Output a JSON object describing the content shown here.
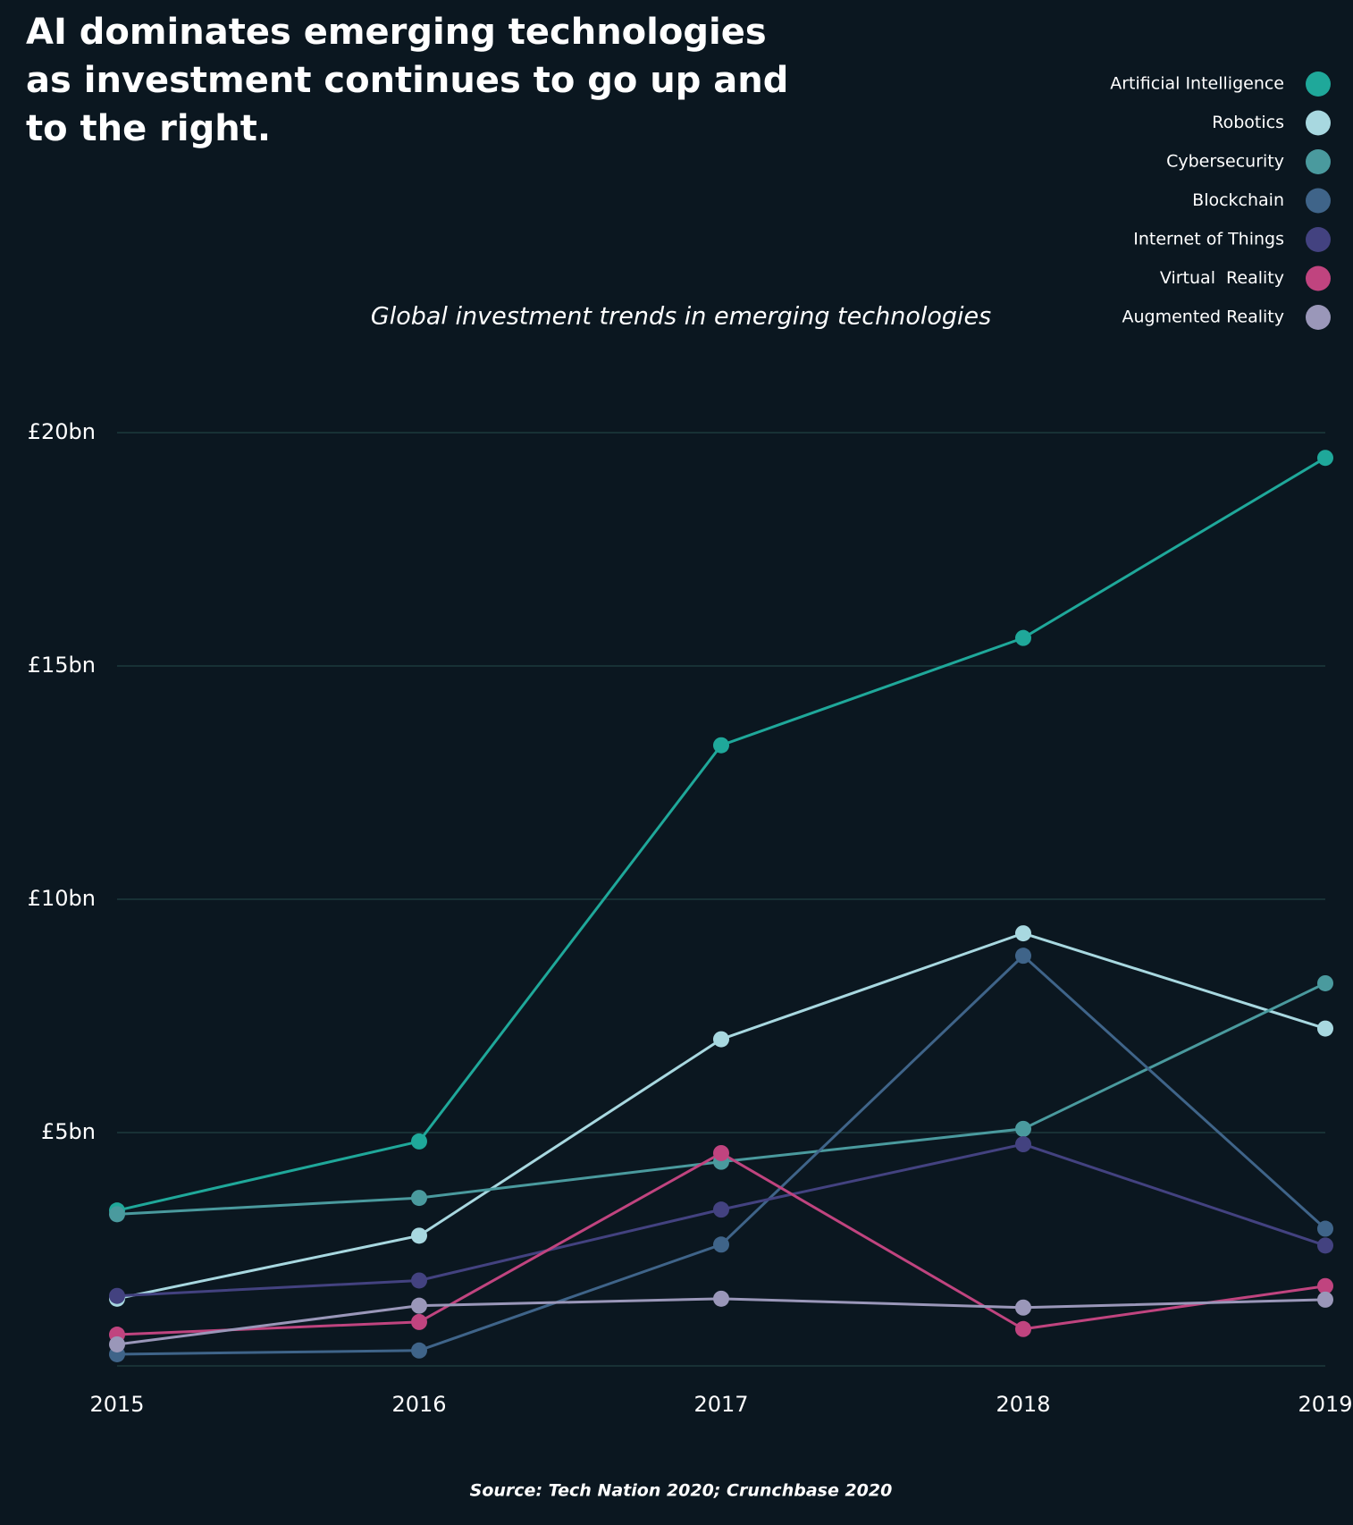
{
  "chart_data": {
    "type": "line",
    "title": [
      "AI dominates emerging technologies",
      "as investment continues to go up and",
      "to the right."
    ],
    "subtitle": "Global investment trends in emerging technologies",
    "source": "Source: Tech Nation 2020; Crunchbase 2020",
    "categories": [
      "2015",
      "2016",
      "2017",
      "2018",
      "2019"
    ],
    "series": [
      {
        "name": "Artificial Intelligence",
        "color": "#1fa89a",
        "values": [
          3.33,
          4.81,
          13.3,
          15.6,
          19.46
        ]
      },
      {
        "name": "Robotics",
        "color": "#a8d8e0",
        "values": [
          1.44,
          2.79,
          7.0,
          9.27,
          7.23
        ]
      },
      {
        "name": "Cybersecurity",
        "color": "#4a9a9e",
        "values": [
          3.25,
          3.6,
          4.375,
          5.08,
          8.2
        ]
      },
      {
        "name": "Blockchain",
        "color": "#3f6489",
        "values": [
          0.25,
          0.33,
          2.6,
          8.79,
          2.94
        ]
      },
      {
        "name": "Internet of Things",
        "color": "#434280",
        "values": [
          1.5,
          1.83,
          3.35,
          4.75,
          2.58
        ]
      },
      {
        "name": "Virtual  Reality",
        "color": "#c0447f",
        "values": [
          0.67,
          0.94,
          4.56,
          0.79,
          1.71
        ]
      },
      {
        "name": "Augmented Reality",
        "color": "#9a97b9",
        "values": [
          0.46,
          1.29,
          1.44,
          1.25,
          1.42
        ]
      }
    ],
    "ylim": [
      0,
      20
    ],
    "yticks": [
      {
        "value": 5,
        "label": "£5bn"
      },
      {
        "value": 10,
        "label": "£10bn"
      },
      {
        "value": 15,
        "label": "£15bn"
      },
      {
        "value": 20,
        "label": "£20bn"
      }
    ],
    "grid": true
  }
}
